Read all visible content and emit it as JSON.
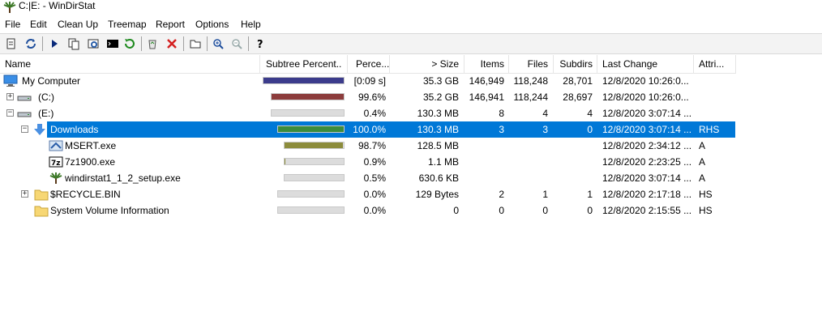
{
  "window": {
    "title": "C:|E: - WinDirStat"
  },
  "menu": [
    "File",
    "Edit",
    "Clean Up",
    "Treemap",
    "Report",
    "Options",
    "Help"
  ],
  "toolbar": {
    "buttons": [
      "refresh-icon",
      "refresh-all-icon",
      "play-icon",
      "copy-icon",
      "explorer-icon",
      "cmd-icon",
      "refresh-selected-icon",
      "recycle-icon",
      "delete-icon",
      "new-folder-icon",
      "zoom-in-icon",
      "zoom-out-icon",
      "help-icon"
    ]
  },
  "colors": {
    "selection": "#0078d7",
    "bar_mycomputer": "#3c3c8c",
    "bar_c": "#8c3c3c",
    "bar_downloads": "#3c8c3c",
    "bar_msert": "#8c8c3c",
    "bar_empty": "#dcdcdc"
  },
  "columns": {
    "name": "Name",
    "subtree": "Subtree Percent...",
    "perc": "Perce...",
    "size": "> Size",
    "items": "Items",
    "files": "Files",
    "subdirs": "Subdirs",
    "lastchange": "Last Change",
    "attr": "Attri..."
  },
  "rows": [
    {
      "name": "My Computer",
      "subtree_fraction": 1.0,
      "perc": "[0:09 s]",
      "size": "35.3 GB",
      "items": "146,949",
      "files": "118,248",
      "subdirs": "28,701",
      "lastchange": "12/8/2020  10:26:0...",
      "attr": ""
    },
    {
      "name": "(C:)",
      "subtree_fraction": 0.996,
      "perc": "99.6%",
      "size": "35.2 GB",
      "items": "146,941",
      "files": "118,244",
      "subdirs": "28,697",
      "lastchange": "12/8/2020  10:26:0...",
      "attr": ""
    },
    {
      "name": "(E:)",
      "subtree_fraction": 0.004,
      "perc": "0.4%",
      "size": "130.3 MB",
      "items": "8",
      "files": "4",
      "subdirs": "4",
      "lastchange": "12/8/2020  3:07:14 ...",
      "attr": ""
    },
    {
      "name": "Downloads",
      "subtree_fraction": 1.0,
      "perc": "100.0%",
      "size": "130.3 MB",
      "items": "3",
      "files": "3",
      "subdirs": "0",
      "lastchange": "12/8/2020  3:07:14 ...",
      "attr": "RHS"
    },
    {
      "name": "MSERT.exe",
      "subtree_fraction": 0.987,
      "perc": "98.7%",
      "size": "128.5 MB",
      "items": "",
      "files": "",
      "subdirs": "",
      "lastchange": "12/8/2020  2:34:12 ...",
      "attr": "A"
    },
    {
      "name": "7z1900.exe",
      "subtree_fraction": 0.009,
      "perc": "0.9%",
      "size": "1.1 MB",
      "items": "",
      "files": "",
      "subdirs": "",
      "lastchange": "12/8/2020  2:23:25 ...",
      "attr": "A"
    },
    {
      "name": "windirstat1_1_2_setup.exe",
      "subtree_fraction": 0.005,
      "perc": "0.5%",
      "size": "630.6 KB",
      "items": "",
      "files": "",
      "subdirs": "",
      "lastchange": "12/8/2020  3:07:14 ...",
      "attr": "A"
    },
    {
      "name": "$RECYCLE.BIN",
      "subtree_fraction": 0.0,
      "perc": "0.0%",
      "size": "129 Bytes",
      "items": "2",
      "files": "1",
      "subdirs": "1",
      "lastchange": "12/8/2020  2:17:18 ...",
      "attr": "HS"
    },
    {
      "name": "System Volume Information",
      "subtree_fraction": 0.0,
      "perc": "0.0%",
      "size": "0",
      "items": "0",
      "files": "0",
      "subdirs": "0",
      "lastchange": "12/8/2020  2:15:55 ...",
      "attr": "HS"
    }
  ]
}
